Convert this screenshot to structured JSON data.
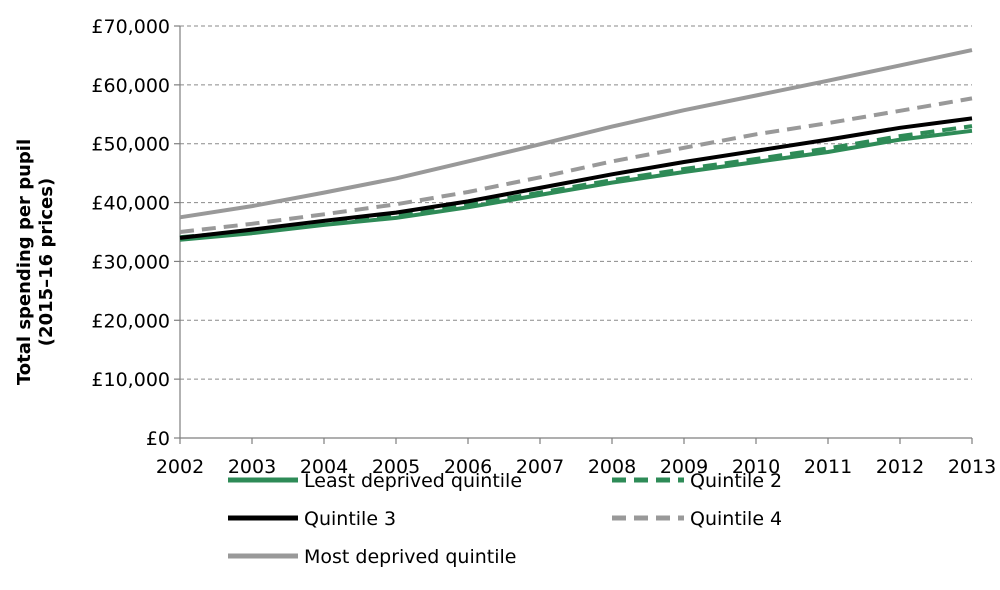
{
  "chart_data": {
    "type": "line",
    "title": "",
    "xlabel": "",
    "ylabel": [
      "Total spending per pupil",
      "(2015–16 prices)"
    ],
    "x": [
      2002,
      2003,
      2004,
      2005,
      2006,
      2007,
      2008,
      2009,
      2010,
      2011,
      2012,
      2013
    ],
    "ylim": [
      0,
      70000
    ],
    "yticks": [
      0,
      10000,
      20000,
      30000,
      40000,
      50000,
      60000,
      70000
    ],
    "ytick_labels": [
      "£0",
      "£10,000",
      "£20,000",
      "£30,000",
      "£40,000",
      "£50,000",
      "£60,000",
      "£70,000"
    ],
    "grid": true,
    "legend_position": "bottom",
    "series": [
      {
        "name": "Least deprived quintile",
        "color": "#2e8b57",
        "dash": "solid",
        "values": [
          33700,
          34800,
          36200,
          37400,
          39200,
          41300,
          43400,
          45200,
          46900,
          48600,
          50700,
          52200
        ]
      },
      {
        "name": "Quintile 2",
        "color": "#2e8b57",
        "dash": "dashed",
        "values": [
          34100,
          35200,
          36600,
          37800,
          39600,
          41700,
          43800,
          45700,
          47400,
          49200,
          51300,
          53000
        ]
      },
      {
        "name": "Quintile 3",
        "color": "#000000",
        "dash": "solid",
        "values": [
          34000,
          35400,
          36900,
          38300,
          40200,
          42500,
          44800,
          46900,
          48800,
          50700,
          52700,
          54300
        ]
      },
      {
        "name": "Quintile 4",
        "color": "#999999",
        "dash": "dashed",
        "values": [
          35000,
          36400,
          38000,
          39700,
          41800,
          44300,
          47000,
          49300,
          51600,
          53500,
          55600,
          57700
        ]
      },
      {
        "name": "Most deprived quintile",
        "color": "#999999",
        "dash": "solid",
        "values": [
          37500,
          39400,
          41700,
          44100,
          47000,
          49900,
          52900,
          55700,
          58200,
          60700,
          63300,
          65900
        ]
      }
    ]
  }
}
